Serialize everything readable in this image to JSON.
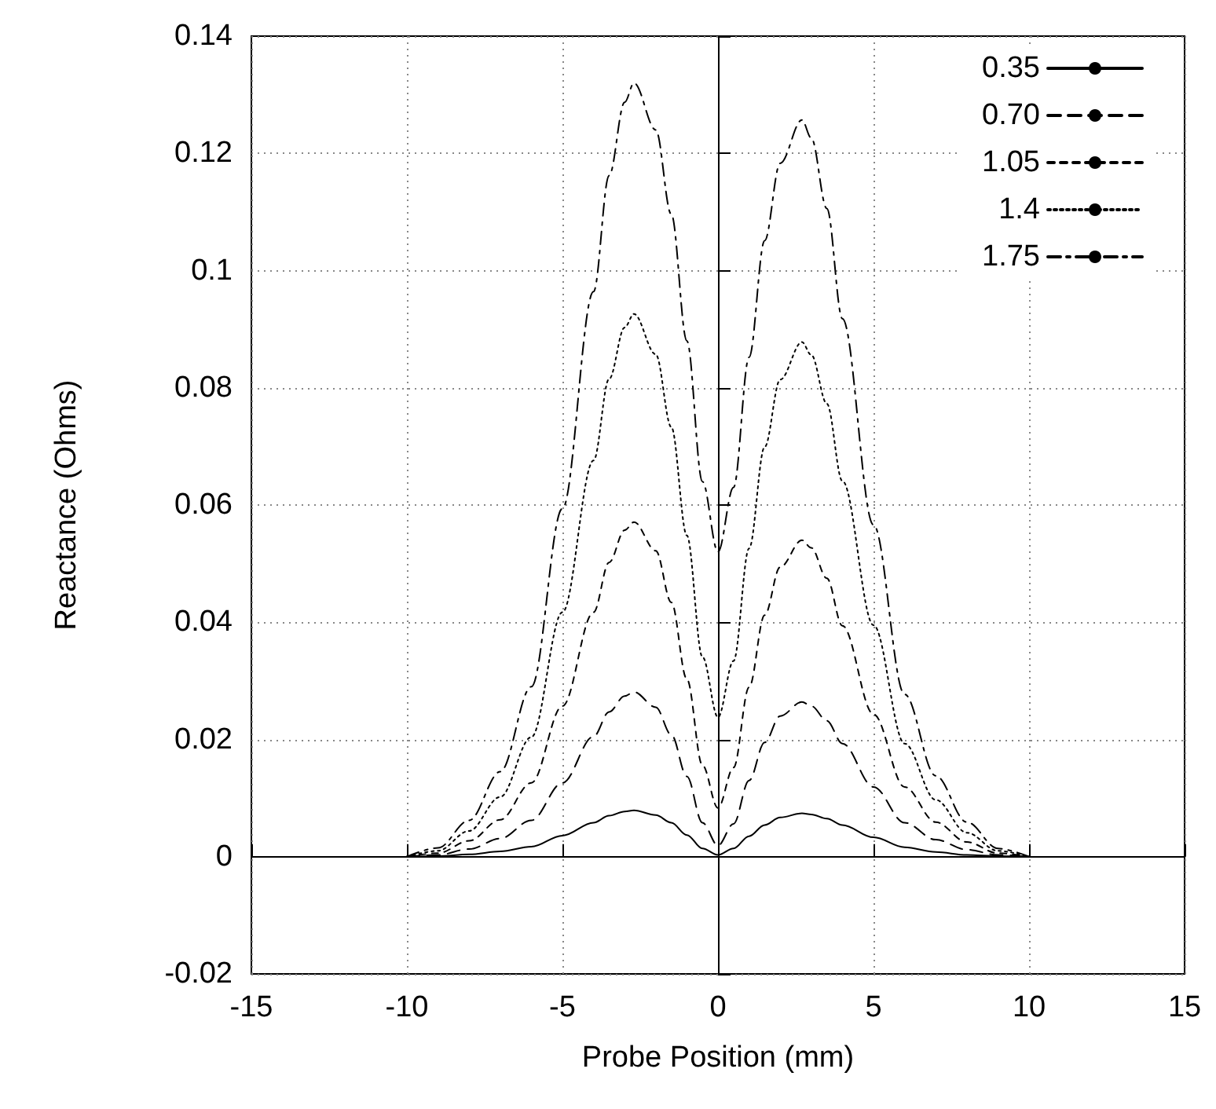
{
  "chart_data": {
    "type": "line",
    "xlabel": "Probe Position (mm)",
    "ylabel": "Reactance (Ohms)",
    "xlim": [
      -15,
      15
    ],
    "xticks": [
      -15,
      -10,
      -5,
      0,
      5,
      10,
      15
    ],
    "ylim": [
      -0.02,
      0.14
    ],
    "yticks": [
      -0.02,
      0,
      0.02,
      0.04,
      0.06,
      0.08,
      0.1,
      0.12,
      0.14
    ],
    "grid": true,
    "legend": "top right",
    "marker": "none",
    "x": [
      -10,
      -9,
      -8,
      -7,
      -6,
      -5,
      -4,
      -3.5,
      -3,
      -2.7,
      -2,
      -1.5,
      -1,
      -0.5,
      0,
      0.5,
      1,
      1.5,
      2,
      2.7,
      3,
      3.5,
      4,
      5,
      6,
      7,
      8,
      9,
      10
    ],
    "series": [
      {
        "name": "0.35",
        "color": "#000000",
        "line_style": "solid",
        "values": [
          0,
          0.0001,
          0.0004,
          0.0009,
          0.0017,
          0.0036,
          0.0058,
          0.007,
          0.0077,
          0.0079,
          0.0071,
          0.0058,
          0.0037,
          0.0014,
          0.0003,
          0.0014,
          0.0035,
          0.0054,
          0.0067,
          0.0074,
          0.0072,
          0.0065,
          0.0054,
          0.0033,
          0.0016,
          0.0008,
          0.0003,
          0.0001,
          0
        ]
      },
      {
        "name": "0.70",
        "color": "#000000",
        "line_style": "dashed",
        "values": [
          0,
          0.0003,
          0.0013,
          0.0031,
          0.0062,
          0.0126,
          0.0205,
          0.0247,
          0.0274,
          0.0281,
          0.0255,
          0.0208,
          0.0137,
          0.0058,
          0.0019,
          0.0056,
          0.013,
          0.0195,
          0.024,
          0.0264,
          0.0257,
          0.0232,
          0.0193,
          0.0119,
          0.0058,
          0.0029,
          0.0012,
          0.0003,
          0
        ]
      },
      {
        "name": "1.05",
        "color": "#000000",
        "line_style": "shortdash",
        "values": [
          0,
          0.0006,
          0.0027,
          0.0063,
          0.0126,
          0.0257,
          0.0417,
          0.0502,
          0.0557,
          0.0571,
          0.0522,
          0.0434,
          0.0303,
          0.0156,
          0.0083,
          0.0152,
          0.0289,
          0.0412,
          0.0494,
          0.054,
          0.0527,
          0.0475,
          0.0394,
          0.0243,
          0.0119,
          0.0059,
          0.0025,
          0.0006,
          0
        ]
      },
      {
        "name": "1.4",
        "color": "#000000",
        "line_style": "dotted",
        "values": [
          0,
          0.001,
          0.0044,
          0.0102,
          0.0204,
          0.0417,
          0.0676,
          0.0815,
          0.0903,
          0.0926,
          0.0857,
          0.0733,
          0.0548,
          0.0341,
          0.0238,
          0.0334,
          0.0526,
          0.0699,
          0.0814,
          0.0878,
          0.0856,
          0.0773,
          0.0641,
          0.0395,
          0.0193,
          0.0097,
          0.0041,
          0.001,
          0
        ]
      },
      {
        "name": "1.75",
        "color": "#000000",
        "line_style": "dashdot",
        "values": [
          0,
          0.0015,
          0.0062,
          0.0145,
          0.029,
          0.0594,
          0.0964,
          0.1162,
          0.1287,
          0.132,
          0.124,
          0.1096,
          0.088,
          0.064,
          0.052,
          0.063,
          0.0852,
          0.1051,
          0.1183,
          0.1257,
          0.1226,
          0.1106,
          0.0918,
          0.0566,
          0.0277,
          0.0138,
          0.0059,
          0.0014,
          0
        ]
      }
    ]
  }
}
